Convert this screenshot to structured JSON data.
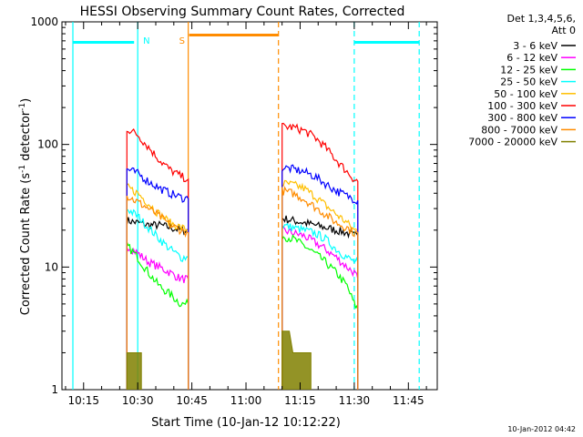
{
  "chart_data": {
    "type": "line",
    "title": "HESSI Observing Summary Count Rates, Corrected",
    "xlabel": "Start Time (10-Jan-12 10:12:22)",
    "ylabel_main": "Corrected Count Rate (s",
    "ylabel_sup1": "-1",
    "ylabel_mid": " detector",
    "ylabel_sup2": "-1",
    "ylabel_end": ")",
    "yscale": "log",
    "ylim": [
      1,
      1000
    ],
    "xlim": [
      "10:09",
      "11:53"
    ],
    "xticks": [
      "10:15",
      "10:30",
      "10:45",
      "11:00",
      "11:15",
      "11:30",
      "11:45"
    ],
    "yticks": [
      "1",
      "10",
      "100",
      "1000"
    ],
    "legend_header": [
      "Det 1,3,4,5,6,",
      "Att 0"
    ],
    "legend_position": "right",
    "timestamp": "10-Jan-2012 04:42",
    "flags": [
      {
        "label": "N",
        "color": "#00ffff",
        "start": "10:30",
        "end": "11:30",
        "level": 680
      },
      {
        "label": "S",
        "color": "#ff8c00",
        "start": "10:44",
        "end": "11:09",
        "level": 780
      }
    ],
    "series": [
      {
        "name": "3 - 6 keV",
        "color": "#000000",
        "segments": [
          {
            "x": [
              "10:27",
              "10:30",
              "10:33",
              "10:36",
              "10:39",
              "10:42",
              "10:44"
            ],
            "y": [
              24,
              23,
              22,
              22,
              21,
              20,
              20
            ]
          },
          {
            "x": [
              "11:10",
              "11:13",
              "11:16",
              "11:19",
              "11:22",
              "11:25",
              "11:28",
              "11:30",
              "11:31"
            ],
            "y": [
              25,
              24,
              23,
              22,
              21,
              20,
              19,
              18,
              18
            ]
          }
        ]
      },
      {
        "name": "6 - 12 keV",
        "color": "#ff00ff",
        "segments": [
          {
            "x": [
              "10:27",
              "10:30",
              "10:33",
              "10:36",
              "10:39",
              "10:42",
              "10:44"
            ],
            "y": [
              15,
              13,
              11,
              10,
              9,
              8,
              8
            ]
          },
          {
            "x": [
              "11:10",
              "11:13",
              "11:16",
              "11:19",
              "11:22",
              "11:25",
              "11:28",
              "11:30",
              "11:31"
            ],
            "y": [
              20,
              19,
              18,
              16,
              14,
              12,
              10,
              9,
              8
            ]
          }
        ]
      },
      {
        "name": "12 - 25 keV",
        "color": "#00ff00",
        "segments": [
          {
            "x": [
              "10:27",
              "10:30",
              "10:33",
              "10:36",
              "10:39",
              "10:42",
              "10:44"
            ],
            "y": [
              15,
              12,
              9,
              7,
              6,
              5,
              5
            ]
          },
          {
            "x": [
              "11:10",
              "11:13",
              "11:16",
              "11:19",
              "11:22",
              "11:25",
              "11:28",
              "11:30",
              "11:31"
            ],
            "y": [
              18,
              17,
              15,
              13,
              11,
              9,
              7,
              5,
              4.5
            ]
          }
        ]
      },
      {
        "name": "25 - 50 keV",
        "color": "#00ffff",
        "segments": [
          {
            "x": [
              "10:27",
              "10:30",
              "10:33",
              "10:36",
              "10:39",
              "10:42",
              "10:44"
            ],
            "y": [
              30,
              26,
              21,
              17,
              14,
              12,
              12
            ]
          },
          {
            "x": [
              "11:10",
              "11:13",
              "11:16",
              "11:19",
              "11:22",
              "11:25",
              "11:28",
              "11:30",
              "11:31"
            ],
            "y": [
              22,
              21,
              20,
              19,
              17,
              14,
              12,
              11,
              11
            ]
          }
        ]
      },
      {
        "name": "50 - 100 keV",
        "color": "#ffbf00",
        "segments": [
          {
            "x": [
              "10:27",
              "10:30",
              "10:33",
              "10:36",
              "10:39",
              "10:42",
              "10:44"
            ],
            "y": [
              45,
              40,
              33,
              27,
              23,
              21,
              20
            ]
          },
          {
            "x": [
              "11:10",
              "11:13",
              "11:16",
              "11:19",
              "11:22",
              "11:25",
              "11:28",
              "11:30",
              "11:31"
            ],
            "y": [
              48,
              47,
              44,
              38,
              32,
              27,
              23,
              20,
              20
            ]
          }
        ]
      },
      {
        "name": "100 - 300 keV",
        "color": "#ff0000",
        "segments": [
          {
            "x": [
              "10:27",
              "10:30",
              "10:33",
              "10:36",
              "10:39",
              "10:42",
              "10:44"
            ],
            "y": [
              135,
              120,
              95,
              75,
              62,
              55,
              52
            ]
          },
          {
            "x": [
              "11:10",
              "11:13",
              "11:16",
              "11:19",
              "11:22",
              "11:25",
              "11:28",
              "11:30",
              "11:31"
            ],
            "y": [
              140,
              138,
              130,
              115,
              95,
              75,
              60,
              52,
              50
            ]
          }
        ]
      },
      {
        "name": "300 - 800 keV",
        "color": "#0000ff",
        "segments": [
          {
            "x": [
              "10:27",
              "10:30",
              "10:33",
              "10:36",
              "10:39",
              "10:42",
              "10:44"
            ],
            "y": [
              63,
              58,
              50,
              44,
              40,
              37,
              36
            ]
          },
          {
            "x": [
              "11:10",
              "11:13",
              "11:16",
              "11:19",
              "11:22",
              "11:25",
              "11:28",
              "11:30",
              "11:31"
            ],
            "y": [
              65,
              63,
              60,
              55,
              48,
              42,
              38,
              36,
              35
            ]
          }
        ]
      },
      {
        "name": "800 - 7000 keV",
        "color": "#ff8c00",
        "segments": [
          {
            "x": [
              "10:27",
              "10:30",
              "10:33",
              "10:36",
              "10:39",
              "10:42",
              "10:44"
            ],
            "y": [
              38,
              34,
              30,
              26,
              22,
              20,
              19
            ]
          },
          {
            "x": [
              "11:10",
              "11:13",
              "11:16",
              "11:19",
              "11:22",
              "11:25",
              "11:28",
              "11:30",
              "11:31"
            ],
            "y": [
              42,
              40,
              36,
              31,
              27,
              23,
              21,
              19,
              19
            ]
          }
        ]
      },
      {
        "name": "7000 - 20000 keV",
        "color": "#808000",
        "segments": [
          {
            "x": [
              "10:27",
              "10:28",
              "10:30",
              "10:31"
            ],
            "y": [
              2,
              2,
              2,
              2
            ]
          },
          {
            "x": [
              "11:10",
              "11:12",
              "11:13",
              "11:15",
              "11:17",
              "11:18"
            ],
            "y": [
              3,
              3,
              2,
              2,
              2,
              2
            ]
          }
        ]
      }
    ]
  }
}
